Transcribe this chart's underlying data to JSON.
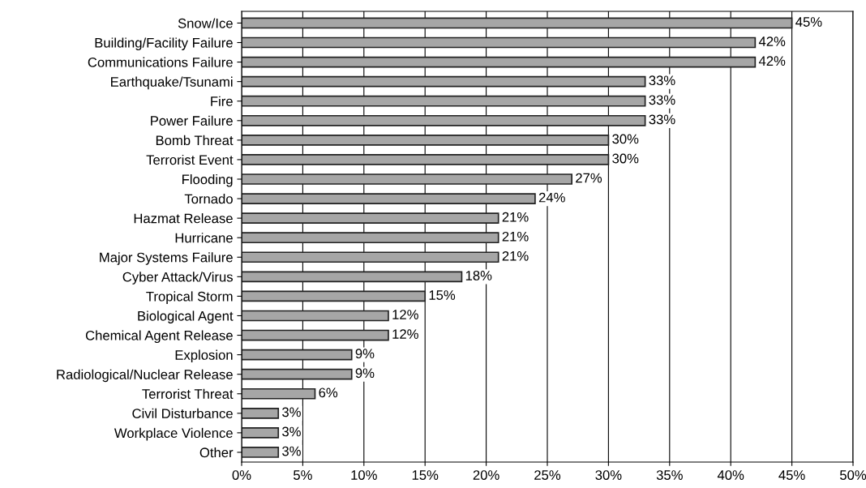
{
  "chart_data": {
    "type": "bar",
    "orientation": "horizontal",
    "categories": [
      "Snow/Ice",
      "Building/Facility Failure",
      "Communications Failure",
      "Earthquake/Tsunami",
      "Fire",
      "Power Failure",
      "Bomb Threat",
      "Terrorist Event",
      "Flooding",
      "Tornado",
      "Hazmat Release",
      "Hurricane",
      "Major Systems Failure",
      "Cyber Attack/Virus",
      "Tropical Storm",
      "Biological Agent",
      "Chemical Agent Release",
      "Explosion",
      "Radiological/Nuclear Release",
      "Terrorist Threat",
      "Civil Disturbance",
      "Workplace Violence",
      "Other"
    ],
    "values": [
      45,
      42,
      42,
      33,
      33,
      33,
      30,
      30,
      27,
      24,
      21,
      21,
      21,
      18,
      15,
      12,
      12,
      9,
      9,
      6,
      3,
      3,
      3
    ],
    "value_labels": [
      "45%",
      "42%",
      "42%",
      "33%",
      "33%",
      "33%",
      "30%",
      "30%",
      "27%",
      "24%",
      "21%",
      "21%",
      "21%",
      "18%",
      "15%",
      "12%",
      "12%",
      "9%",
      "9%",
      "6%",
      "3%",
      "3%",
      "3%"
    ],
    "color": "#a6a6a6",
    "xlim": [
      0,
      50
    ],
    "xticks": [
      {
        "value": 0,
        "label": "0%"
      },
      {
        "value": 5,
        "label": "5%"
      },
      {
        "value": 10,
        "label": "10%"
      },
      {
        "value": 15,
        "label": "15%"
      },
      {
        "value": 20,
        "label": "20%"
      },
      {
        "value": 25,
        "label": "25%"
      },
      {
        "value": 30,
        "label": "30%"
      },
      {
        "value": 35,
        "label": "35%"
      },
      {
        "value": 40,
        "label": "40%"
      },
      {
        "value": 45,
        "label": "45%"
      },
      {
        "value": 50,
        "label": "50%"
      }
    ],
    "grid": "x"
  }
}
